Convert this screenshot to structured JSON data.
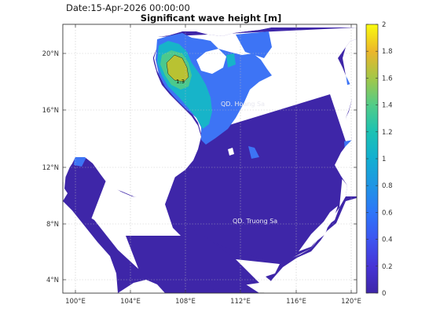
{
  "header": {
    "date_text": "Date:15-Apr-2026 00:00:00",
    "title": "Significant wave height [m]"
  },
  "map": {
    "region": "South China Sea",
    "lon_range": [
      99,
      120.5
    ],
    "lat_range": [
      3,
      22
    ],
    "lon_ticks": [
      "100°E",
      "104°E",
      "108°E",
      "112°E",
      "116°E",
      "120°E"
    ],
    "lat_ticks": [
      "20°N",
      "16°N",
      "12°N",
      "8°N",
      "4°N"
    ],
    "grid": "dotted",
    "place_labels": [
      {
        "text": "QD. Hoang Sa",
        "lon": 112.2,
        "lat": 16.4
      },
      {
        "text": "QD. Truong Sa",
        "lon": 113.1,
        "lat": 8.3
      }
    ],
    "contour_label": "1.3"
  },
  "colorbar": {
    "ticks": [
      "2",
      "1.8",
      "1.6",
      "1.4",
      "1.2",
      "1",
      "0.8",
      "0.6",
      "0.4",
      "0.2",
      "0"
    ],
    "range": [
      0,
      2
    ],
    "colormap": "parula",
    "colors": {
      "deep": "#3e26a8",
      "low": "#3d74f5",
      "mid": "#17b4c9",
      "midhigh": "#4bc98d",
      "high": "#b9c232",
      "peak": "#f9e30d"
    }
  }
}
